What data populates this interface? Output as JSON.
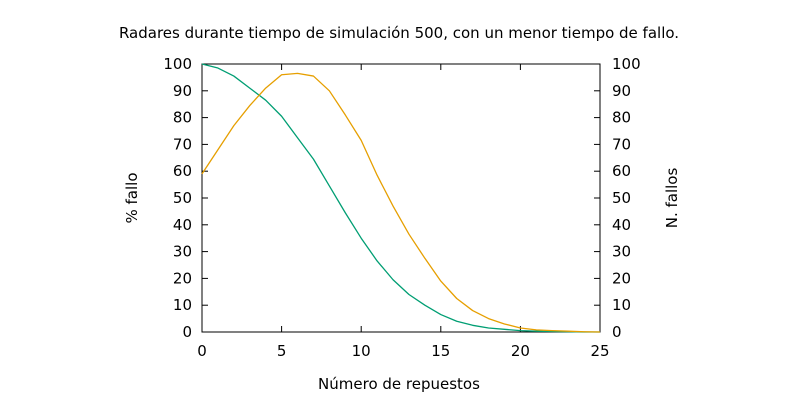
{
  "chart_data": {
    "type": "line",
    "title": "Radares durante tiempo de simulación 500, con un menor tiempo de fallo.",
    "xlabel": "Número de repuestos",
    "ylabel": "% fallo",
    "y2label": "N. fallos",
    "xlim": [
      0,
      25
    ],
    "ylim": [
      0,
      100
    ],
    "y2lim": [
      0,
      100
    ],
    "xticks": [
      0,
      5,
      10,
      15,
      20,
      25
    ],
    "yticks": [
      0,
      10,
      20,
      30,
      40,
      50,
      60,
      70,
      80,
      90,
      100
    ],
    "y2ticks": [
      0,
      10,
      20,
      30,
      40,
      50,
      60,
      70,
      80,
      90,
      100
    ],
    "grid": false,
    "legend": "none",
    "series": [
      {
        "axis": "y",
        "color": "#009e73",
        "x": [
          0,
          1,
          2,
          3,
          4,
          5,
          6,
          7,
          8,
          9,
          10,
          11,
          12,
          13,
          14,
          15,
          16,
          17,
          18,
          19,
          20,
          21,
          22,
          23,
          24,
          25
        ],
        "values": [
          100,
          98.5,
          95.5,
          91,
          86.5,
          80.5,
          72.5,
          64.5,
          54.5,
          44.5,
          35,
          26.5,
          19.5,
          14,
          10,
          6.5,
          4,
          2.5,
          1.5,
          1,
          0.5,
          0.3,
          0.2,
          0.1,
          0,
          0
        ]
      },
      {
        "axis": "y2",
        "color": "#e69f00",
        "x": [
          0,
          1,
          2,
          3,
          4,
          5,
          6,
          7,
          8,
          9,
          10,
          11,
          12,
          13,
          14,
          15,
          16,
          17,
          18,
          19,
          20,
          21,
          22,
          23,
          24,
          25
        ],
        "values": [
          59,
          68,
          77,
          84.5,
          91,
          96,
          96.5,
          95.5,
          90,
          81,
          71.5,
          58.5,
          47,
          36.5,
          27.5,
          19,
          12.5,
          8,
          5,
          3,
          1.5,
          0.8,
          0.5,
          0.3,
          0.1,
          0
        ]
      }
    ]
  }
}
